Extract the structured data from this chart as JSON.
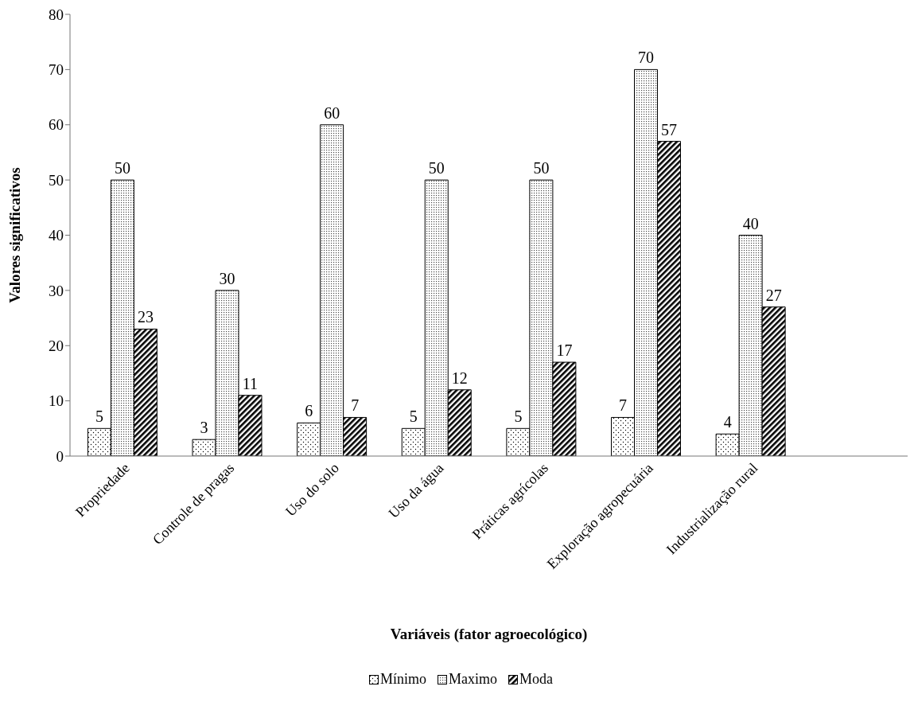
{
  "chart_data": {
    "type": "bar",
    "xlabel": "Variáveis (fator agroecológico)",
    "ylabel": "Valores significativos",
    "categories": [
      "Propriedade",
      "Controle de pragas",
      "Uso do solo",
      "Uso da água",
      "Práticas agrícolas",
      "Exploração agropecuária",
      "Industrialização rural",
      null
    ],
    "series": [
      {
        "name": "Mínimo",
        "color": "#000000",
        "values": [
          5,
          3,
          6,
          5,
          5,
          7,
          4,
          null
        ]
      },
      {
        "name": "Maximo",
        "color": "#000000",
        "values": [
          50,
          30,
          60,
          50,
          50,
          70,
          40,
          null
        ]
      },
      {
        "name": "Moda",
        "color": "#000000",
        "values": [
          23,
          11,
          7,
          12,
          17,
          57,
          27,
          null
        ]
      }
    ],
    "ylim": [
      0,
      80
    ],
    "yticks": [
      0,
      10,
      20,
      30,
      40,
      50,
      60,
      70,
      80
    ],
    "grid": false,
    "legend": "bottom",
    "data_labels": true
  }
}
